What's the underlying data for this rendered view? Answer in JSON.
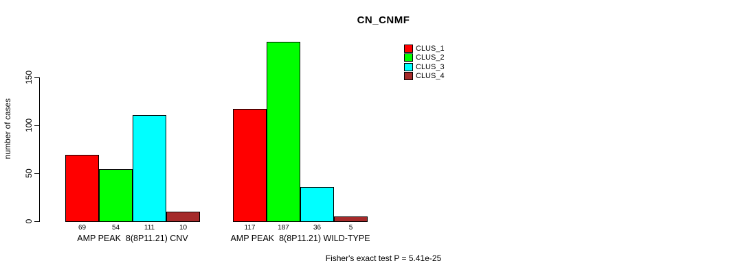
{
  "chart_data": {
    "type": "bar",
    "title": "CN_CNMF",
    "ylabel": "number of cases",
    "ylim": [
      0,
      187
    ],
    "yticks": [
      0,
      50,
      100,
      150
    ],
    "grid": false,
    "legend_position": "top-right",
    "categories": [
      "AMP PEAK  8(8P11.21) CNV",
      "AMP PEAK  8(8P11.21) WILD-TYPE"
    ],
    "series": [
      {
        "name": "CLUS_1",
        "color": "#ff0000",
        "values": [
          69,
          117
        ]
      },
      {
        "name": "CLUS_2",
        "color": "#00ff00",
        "values": [
          54,
          187
        ]
      },
      {
        "name": "CLUS_3",
        "color": "#00ffff",
        "values": [
          111,
          36
        ]
      },
      {
        "name": "CLUS_4",
        "color": "#a52a2a",
        "values": [
          10,
          5
        ]
      }
    ],
    "bar_value_labels": true,
    "annotation": "Fisher's exact test P = 5.41e-25"
  }
}
